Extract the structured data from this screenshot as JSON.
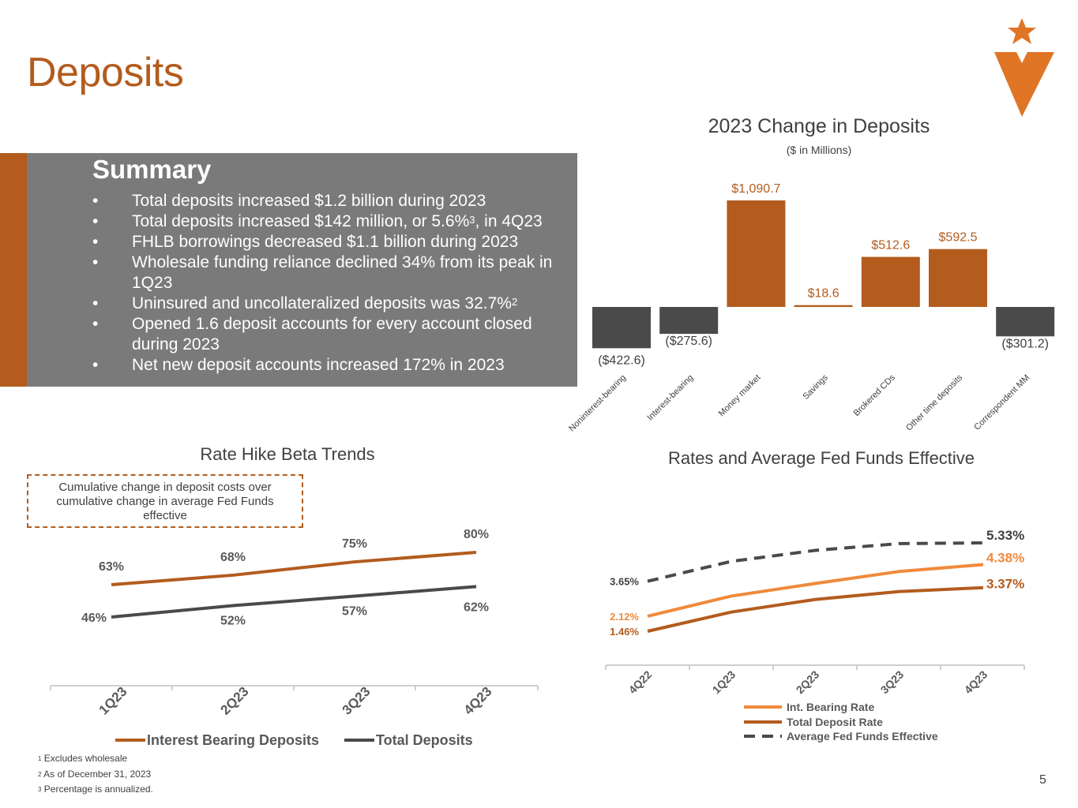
{
  "page": {
    "title": "Deposits",
    "page_number": "5"
  },
  "summary": {
    "title": "Summary",
    "bullet_char": "•",
    "items": [
      {
        "text": "Total deposits increased $1.2 billion during 2023"
      },
      {
        "text": "Total deposits increased $142 million, or 5.6%",
        "sup": "3",
        "suffix": ", in 4Q23"
      },
      {
        "text": "FHLB borrowings decreased $1.1 billion during 2023"
      },
      {
        "text": "Wholesale funding reliance declined 34% from its peak in 1Q23"
      },
      {
        "text": "Uninsured and uncollateralized deposits was 32.7%",
        "sup": "2"
      },
      {
        "text": "Opened 1.6 deposit accounts for every account closed during 2023"
      },
      {
        "text": "Net new deposit accounts increased 172% in 2023"
      }
    ]
  },
  "colors": {
    "accent": "#b35c1e",
    "light_orange": "#f08a3c",
    "dark_gray": "#4a4a4a",
    "panel_gray": "#7a7a7a"
  },
  "chart_data": [
    {
      "type": "bar",
      "title": "2023 Change in Deposits",
      "subtitle": "($ in Millions)",
      "categories": [
        "Noninterest-bearing",
        "Interest-bearing",
        "Money market",
        "Savings",
        "Brokered CDs",
        "Other time deposits",
        "Correspondent MM"
      ],
      "values": [
        -422.6,
        -275.6,
        1090.7,
        18.6,
        512.6,
        592.5,
        -301.2
      ],
      "labels": [
        "($422.6)",
        "($275.6)",
        "$1,090.7",
        "$18.6",
        "$512.6",
        "$592.5",
        "($301.2)"
      ]
    },
    {
      "type": "line",
      "title": "Rate Hike Beta Trends",
      "annotation": "Cumulative change in deposit costs over cumulative change in average Fed Funds effective",
      "categories": [
        "1Q23",
        "2Q23",
        "3Q23",
        "4Q23"
      ],
      "ylim": [
        0,
        100
      ],
      "series": [
        {
          "name": "Interest Bearing Deposits",
          "values": [
            63,
            68,
            75,
            80
          ],
          "labels": [
            "63%",
            "68%",
            "75%",
            "80%"
          ],
          "color": "#b35c1e"
        },
        {
          "name": "Total Deposits",
          "values": [
            46,
            52,
            57,
            62
          ],
          "labels": [
            "46%",
            "52%",
            "57%",
            "62%"
          ],
          "color": "#4a4a4a"
        }
      ]
    },
    {
      "type": "line",
      "title": "Rates and Average Fed Funds Effective",
      "categories": [
        "4Q22",
        "1Q23",
        "2Q23",
        "3Q23",
        "4Q23"
      ],
      "ylim": [
        0,
        6
      ],
      "series": [
        {
          "name": "Int. Bearing Rate",
          "values": [
            2.12,
            3.0,
            3.55,
            4.08,
            4.38
          ],
          "start_label": "2.12%",
          "end_label": "4.38%",
          "color": "#f08a3c",
          "dash": false
        },
        {
          "name": "Total Deposit Rate",
          "values": [
            1.46,
            2.3,
            2.85,
            3.2,
            3.37
          ],
          "start_label": "1.46%",
          "end_label": "3.37%",
          "color": "#b35c1e",
          "dash": false
        },
        {
          "name": "Average Fed Funds Effective",
          "values": [
            3.65,
            4.52,
            5.0,
            5.3,
            5.33
          ],
          "start_label": "3.65%",
          "end_label": "5.33%",
          "color": "#4a4a4a",
          "dash": true
        }
      ]
    }
  ],
  "footnotes": [
    {
      "num": "1",
      "text": "Excludes wholesale"
    },
    {
      "num": "2",
      "text": "As of December 31, 2023"
    },
    {
      "num": "3",
      "text": "Percentage is annualized."
    }
  ]
}
